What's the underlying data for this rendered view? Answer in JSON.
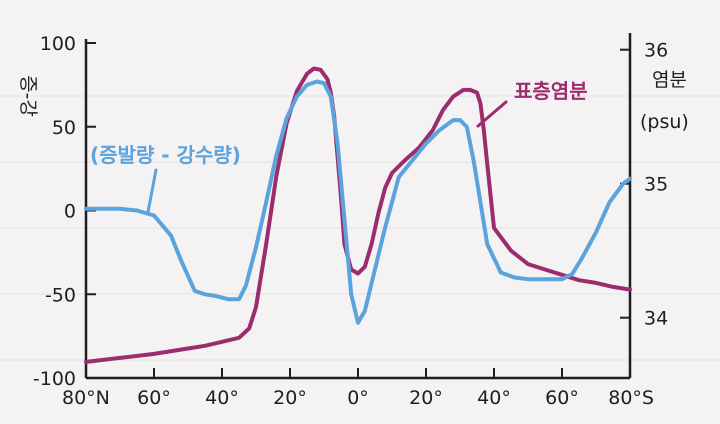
{
  "chart_data": {
    "type": "line",
    "title": "",
    "xlabel": "",
    "x_ticks": [
      {
        "lat": -80,
        "label": "80°N"
      },
      {
        "lat": -60,
        "label": "60°"
      },
      {
        "lat": -40,
        "label": "40°"
      },
      {
        "lat": -20,
        "label": "20°"
      },
      {
        "lat": 0,
        "label": "0°"
      },
      {
        "lat": 20,
        "label": "20°"
      },
      {
        "lat": 40,
        "label": "40°"
      },
      {
        "lat": 60,
        "label": "60°"
      },
      {
        "lat": 80,
        "label": "80°S"
      }
    ],
    "xlim": [
      -80,
      80
    ],
    "y_left": {
      "label": "증-강",
      "ticks": [
        100,
        50,
        0,
        -50,
        -100
      ],
      "tick_labels": [
        "100",
        "50",
        "0",
        "-50",
        "-100"
      ],
      "ylim": [
        -100,
        100
      ]
    },
    "y_right": {
      "label_line1": "염분",
      "label_line2": "(psu)",
      "ticks": [
        36,
        35,
        34
      ],
      "tick_labels": [
        "36",
        "35",
        "34"
      ],
      "ylim": [
        33.55,
        36.05
      ]
    },
    "series": [
      {
        "name": "(증발량 - 강수량)",
        "axis": "left",
        "color": "#5aa3dc",
        "x": [
          -80,
          -70,
          -65,
          -60,
          -55,
          -52,
          -48,
          -45,
          -42,
          -38,
          -35,
          -33,
          -30,
          -27,
          -24,
          -21,
          -18,
          -15,
          -12,
          -10,
          -8,
          -6,
          -4,
          -2,
          0,
          2,
          5,
          8,
          12,
          16,
          20,
          24,
          28,
          30,
          32,
          34,
          36,
          38,
          42,
          46,
          50,
          55,
          60,
          63,
          66,
          70,
          74,
          78,
          80
        ],
        "y": [
          1,
          1,
          0,
          -3,
          -15,
          -30,
          -48,
          -50,
          -51,
          -53,
          -53,
          -45,
          -22,
          5,
          33,
          55,
          68,
          75,
          77,
          76,
          68,
          40,
          -5,
          -50,
          -67,
          -60,
          -35,
          -10,
          20,
          30,
          40,
          48,
          54,
          54,
          50,
          30,
          5,
          -20,
          -37,
          -40,
          -41,
          -41,
          -41,
          -38,
          -28,
          -13,
          5,
          16,
          19
        ]
      },
      {
        "name": "표층염분",
        "axis": "right",
        "color": "#9b2d6e",
        "x": [
          -80,
          -70,
          -60,
          -50,
          -45,
          -40,
          -35,
          -32,
          -30,
          -27,
          -24,
          -21,
          -18,
          -15,
          -13,
          -11,
          -9,
          -8,
          -7,
          -6,
          -5,
          -4,
          -2,
          0,
          2,
          4,
          6,
          8,
          10,
          14,
          18,
          22,
          25,
          28,
          31,
          33,
          35,
          36,
          37,
          38,
          40,
          45,
          50,
          55,
          60,
          65,
          70,
          75,
          80
        ],
        "y": [
          33.67,
          33.7,
          33.73,
          33.77,
          33.79,
          33.82,
          33.85,
          33.92,
          34.08,
          34.55,
          35.06,
          35.45,
          35.69,
          35.82,
          35.86,
          35.85,
          35.78,
          35.68,
          35.5,
          35.2,
          34.9,
          34.55,
          34.36,
          34.33,
          34.38,
          34.55,
          34.78,
          34.97,
          35.08,
          35.18,
          35.27,
          35.4,
          35.55,
          35.65,
          35.7,
          35.7,
          35.68,
          35.6,
          35.4,
          35.15,
          34.67,
          34.5,
          34.4,
          34.36,
          34.32,
          34.28,
          34.26,
          34.23,
          34.21
        ]
      }
    ]
  }
}
